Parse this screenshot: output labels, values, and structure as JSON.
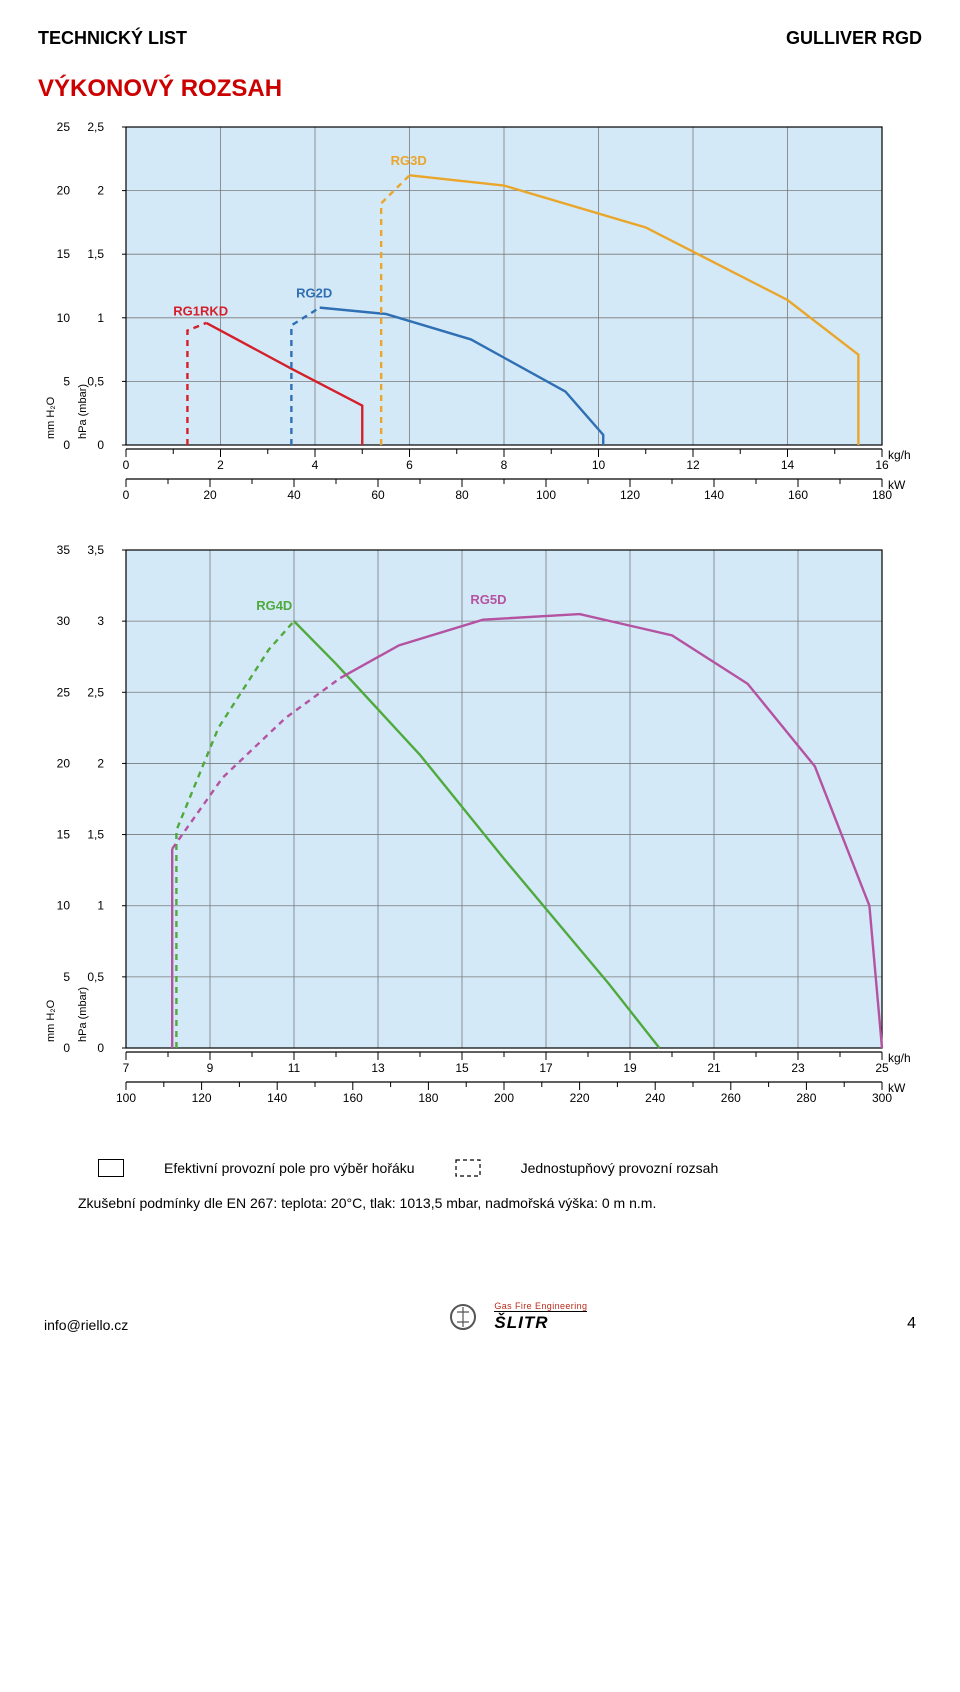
{
  "header": {
    "left": "TECHNICKÝ LIST",
    "right": "GULLIVER RGD"
  },
  "title": "VÝKONOVÝ ROZSAH",
  "chart1": {
    "type": "line",
    "bg": "#d4e9f7",
    "grid_color": "#7a7a7a",
    "y1": {
      "label": "mm H₂O",
      "lim": [
        0,
        25
      ],
      "step": 5
    },
    "y2": {
      "label": "hPa (mbar)",
      "lim": [
        0,
        2.5
      ],
      "step": 0.5
    },
    "x1": {
      "unit": "kg/h",
      "lim": [
        0,
        16
      ],
      "step": 2
    },
    "x2": {
      "unit": "kW",
      "lim": [
        0,
        180
      ],
      "step": 20
    },
    "series": [
      {
        "name": "RG1RKD",
        "color": "#d3202a",
        "label_xy": [
          1.0,
          10.2
        ],
        "dash": [
          [
            1.3,
            0
          ],
          [
            1.3,
            9.0
          ],
          [
            1.7,
            9.6
          ]
        ],
        "solid": [
          [
            1.7,
            9.6
          ],
          [
            2.4,
            8.2
          ],
          [
            3.5,
            6.0
          ],
          [
            5.0,
            3.1
          ],
          [
            5.0,
            0
          ]
        ]
      },
      {
        "name": "RG2D",
        "color": "#2f6fb3",
        "label_xy": [
          3.6,
          11.6
        ],
        "dash": [
          [
            3.5,
            0
          ],
          [
            3.5,
            9.4
          ],
          [
            4.1,
            10.8
          ]
        ],
        "solid": [
          [
            4.1,
            10.8
          ],
          [
            5.5,
            10.3
          ],
          [
            7.3,
            8.3
          ],
          [
            9.3,
            4.2
          ],
          [
            10.1,
            0.8
          ],
          [
            10.1,
            0
          ]
        ]
      },
      {
        "name": "RG3D",
        "color": "#e9a62b",
        "label_xy": [
          5.6,
          22.0
        ],
        "dash": [
          [
            5.4,
            0
          ],
          [
            5.4,
            19.0
          ],
          [
            6.0,
            21.2
          ]
        ],
        "solid": [
          [
            6.0,
            21.2
          ],
          [
            8.0,
            20.4
          ],
          [
            11.0,
            17.1
          ],
          [
            14.0,
            11.4
          ],
          [
            15.5,
            7.1
          ],
          [
            15.5,
            0
          ]
        ]
      }
    ]
  },
  "chart2": {
    "type": "line",
    "bg": "#d4e9f7",
    "grid_color": "#7a7a7a",
    "y1": {
      "label": "mm H₂O",
      "lim": [
        0,
        35
      ],
      "step": 5
    },
    "y2": {
      "label": "hPa (mbar)",
      "lim": [
        0,
        3.5
      ],
      "step": 0.5
    },
    "x1": {
      "unit": "kg/h",
      "lim": [
        7,
        25
      ],
      "step": 2
    },
    "x2": {
      "unit": "kW",
      "lim": [
        100,
        300
      ],
      "step": 20
    },
    "series": [
      {
        "name": "RG4D",
        "color": "#4faa3d",
        "label_xy": [
          10.1,
          30.8
        ],
        "dash": [
          [
            8.2,
            0
          ],
          [
            8.2,
            15.3
          ],
          [
            9.2,
            22.5
          ],
          [
            10.4,
            28.0
          ],
          [
            11.0,
            30.0
          ]
        ],
        "solid": [
          [
            11.0,
            30.0
          ],
          [
            12.0,
            27.0
          ],
          [
            14.0,
            20.6
          ],
          [
            16.0,
            13.3
          ],
          [
            18.5,
            4.5
          ],
          [
            19.7,
            0
          ]
        ]
      },
      {
        "name": "RG5D",
        "color": "#b453a1",
        "label_xy": [
          15.2,
          31.2
        ],
        "dash": [
          [
            8.1,
            14.0
          ],
          [
            9.3,
            19.0
          ],
          [
            10.8,
            23.2
          ],
          [
            12.1,
            26.0
          ]
        ],
        "solid": [
          [
            12.1,
            26.0
          ],
          [
            13.5,
            28.3
          ],
          [
            15.5,
            30.1
          ],
          [
            17.8,
            30.5
          ],
          [
            20.0,
            29.0
          ],
          [
            21.8,
            25.6
          ],
          [
            23.4,
            19.8
          ],
          [
            24.7,
            10.0
          ],
          [
            25.0,
            0
          ]
        ]
      }
    ],
    "series_rg5_left_solid": [
      [
        8.1,
        14.0
      ],
      [
        8.1,
        0
      ]
    ]
  },
  "legend": {
    "solid": "Efektivní provozní pole pro výběr hořáku",
    "dash": "Jednostupňový provozní rozsah"
  },
  "note": "Zkušební podmínky dle EN 267: teplota: 20°C, tlak: 1013,5 mbar, nadmořská výška: 0 m n.m.",
  "footer": {
    "email": "info@riello.cz",
    "page": "4",
    "brand_small": "Gas Fire Engineering",
    "brand_big": "ŠLITR"
  }
}
